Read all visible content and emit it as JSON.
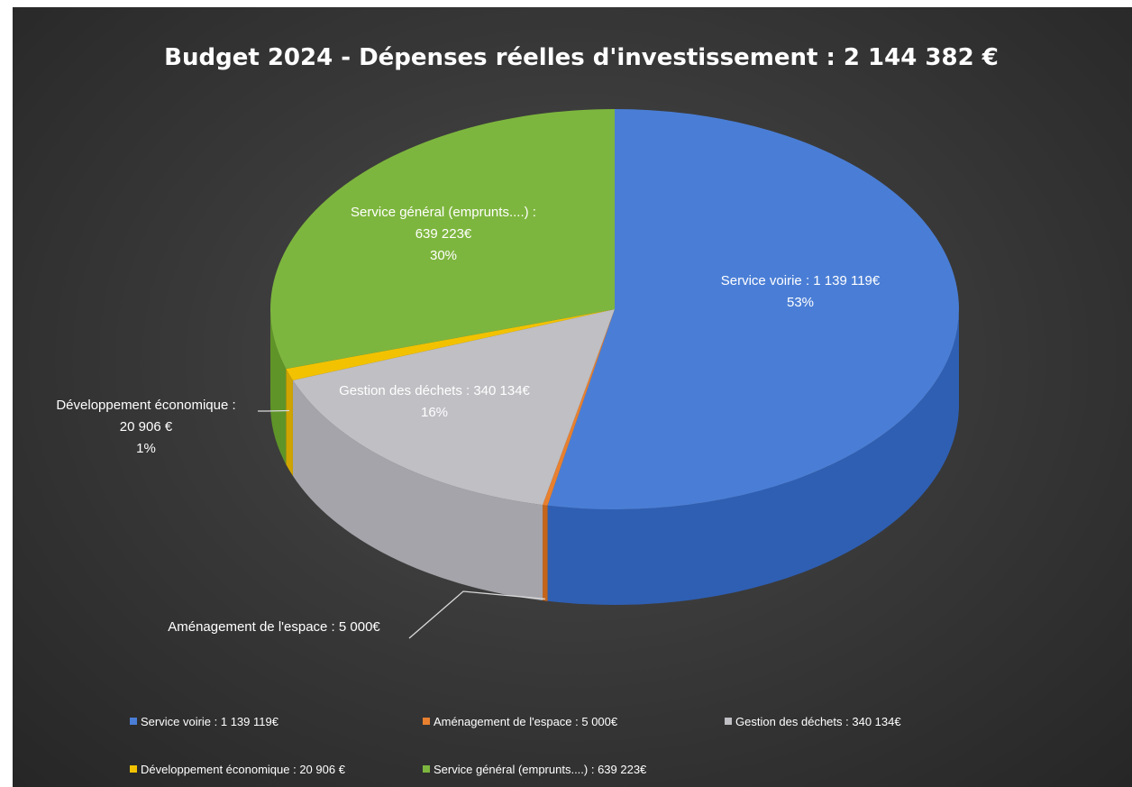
{
  "chart_data": {
    "type": "pie",
    "title": "Budget 2024 - Dépenses réelles d'investissement : 2 144 382 €",
    "legend_position": "bottom",
    "slices": [
      {
        "name": "Service voirie : 1 139 119€",
        "value": 1139119,
        "color": "#4a7ed6",
        "side_color": "#2f5fb3",
        "label_lines": [
          "Service voirie : 1 139 119€",
          "53%"
        ]
      },
      {
        "name": "Aménagement de l'espace : 5 000€",
        "value": 5000,
        "color": "#e8802f",
        "side_color": "#c5651b",
        "label_lines": [
          "Aménagement de l'espace : 5 000€"
        ]
      },
      {
        "name": "Gestion des déchets : 340 134€",
        "value": 340134,
        "color": "#bfbfc4",
        "side_color": "#a4a4aa",
        "label_lines": [
          "Gestion des déchets : 340 134€",
          "16%"
        ]
      },
      {
        "name": "Développement économique : 20 906 €",
        "value": 20906,
        "color": "#f2c200",
        "side_color": "#cfa400",
        "label_lines": [
          "Développement économique :",
          "20 906 €",
          "1%"
        ]
      },
      {
        "name": "Service général (emprunts....) : 639 223€",
        "value": 639223,
        "color": "#7db63e",
        "side_color": "#5f9428",
        "label_lines": [
          "Service général (emprunts....) :",
          "639 223€",
          "30%"
        ]
      }
    ]
  }
}
